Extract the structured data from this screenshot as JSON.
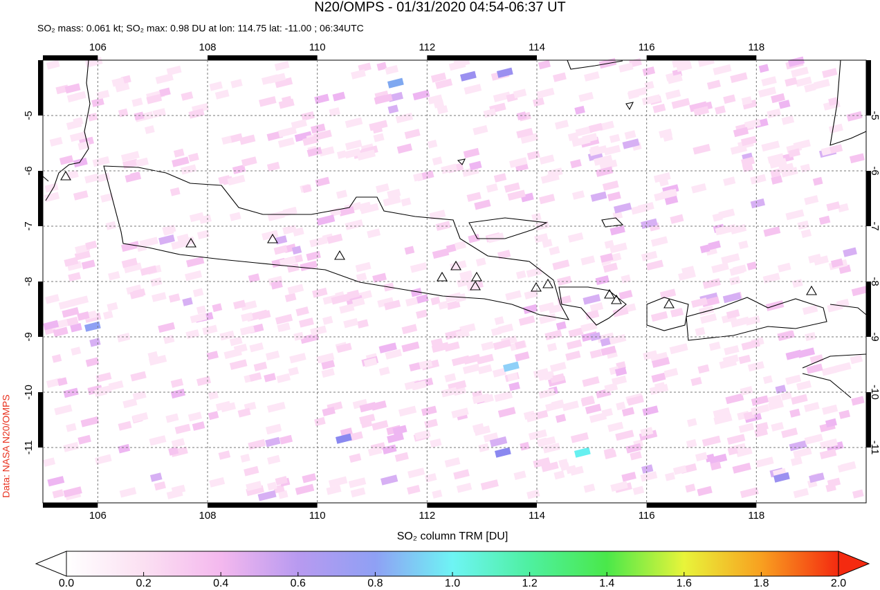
{
  "title": "N20/OMPS - 01/31/2020 04:54-06:37 UT",
  "subtitle": "SO₂ mass: 0.061 kt; SO₂ max: 0.98 DU at lon: 114.75 lat: -11.00 ; 06:34UTC",
  "credit": "Data: NASA N20/OMPS",
  "map": {
    "xlim": [
      105,
      120
    ],
    "ylim": [
      -12,
      -4
    ],
    "xticks": [
      106,
      108,
      110,
      112,
      114,
      116,
      118
    ],
    "yticks": [
      -5,
      -6,
      -7,
      -8,
      -9,
      -10,
      -11
    ]
  },
  "colorbar": {
    "label": "SO₂ column TRM [DU]",
    "lim": [
      0,
      2
    ],
    "ticks": [
      {
        "value": 0,
        "label": "0.0"
      },
      {
        "value": 0.2,
        "label": "0.2"
      },
      {
        "value": 0.4,
        "label": "0.4"
      },
      {
        "value": 0.6,
        "label": "0.6"
      },
      {
        "value": 0.8,
        "label": "0.8"
      },
      {
        "value": 1,
        "label": "1.0"
      },
      {
        "value": 1.2,
        "label": "1.2"
      },
      {
        "value": 1.4,
        "label": "1.4"
      },
      {
        "value": 1.6,
        "label": "1.6"
      },
      {
        "value": 1.8,
        "label": "1.8"
      },
      {
        "value": 2,
        "label": "2.0"
      }
    ]
  }
}
